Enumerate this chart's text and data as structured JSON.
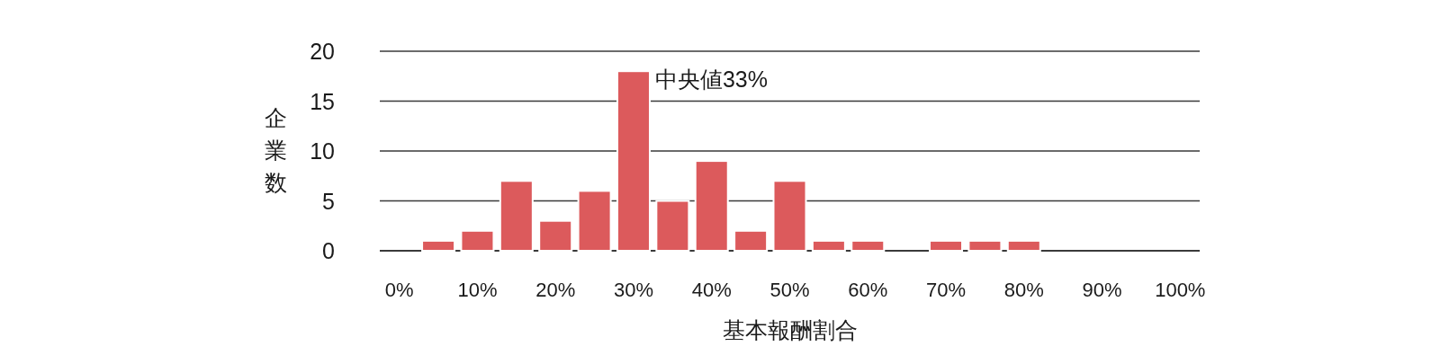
{
  "chart_data": {
    "type": "bar",
    "xlabel": "基本報酬割合",
    "ylabel": "企業数",
    "categories": [
      "0%",
      null,
      "10%",
      null,
      "20%",
      null,
      "30%",
      null,
      "40%",
      null,
      "50%",
      null,
      "60%",
      null,
      "70%",
      null,
      "80%",
      null,
      "90%",
      null,
      "100%"
    ],
    "values": [
      0,
      1,
      2,
      7,
      3,
      6,
      18,
      5,
      9,
      2,
      7,
      1,
      1,
      0,
      1,
      1,
      1,
      0,
      0,
      0,
      0
    ],
    "color": "#dc5a5c",
    "ylim": [
      0,
      20
    ],
    "yticks": [
      0,
      5,
      10,
      15,
      20
    ],
    "grid": "y",
    "annotations": [
      {
        "text": "中央値33%",
        "x": "30%",
        "y": 18
      }
    ]
  }
}
